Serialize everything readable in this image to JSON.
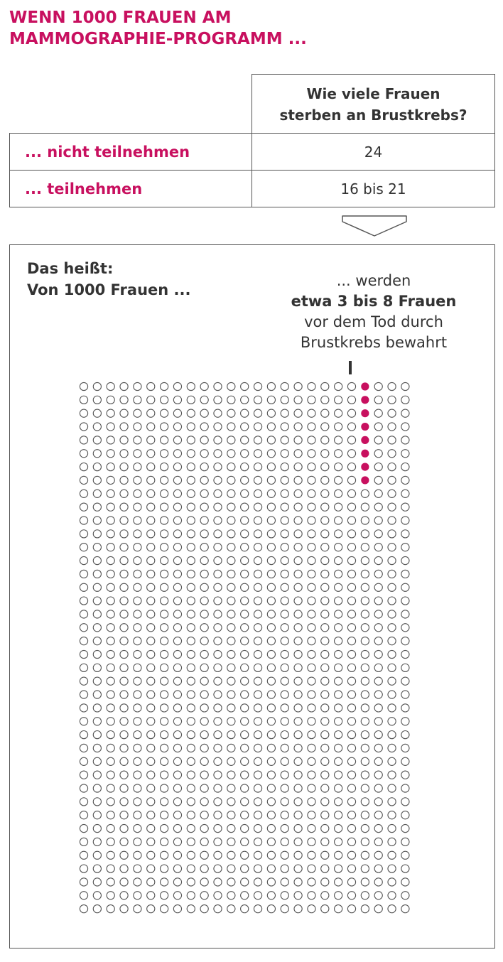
{
  "title": {
    "line1": "WENN 1000 FRAUEN AM",
    "line2": "MAMMOGRAPHIE-PROGRAMM ..."
  },
  "table": {
    "header": "Wie viele Frauen sterben an Brustkrebs?",
    "header_lines": [
      "Wie viele Frauen",
      "sterben an Brustkrebs?"
    ],
    "rows": [
      {
        "label": "... nicht teilnehmen",
        "value": "24"
      },
      {
        "label": "... teilnehmen",
        "value": "16 bis 21"
      }
    ]
  },
  "result": {
    "lead_lines": [
      "Das heißt:",
      "Von 1000 Frauen ..."
    ],
    "note_lines": [
      "... werden",
      "etwa 3 bis 8 Frauen",
      "vor dem Tod durch",
      "Brustkrebs bewahrt"
    ]
  },
  "icon_array": {
    "total": 1000,
    "columns": 25,
    "rows": 40,
    "highlighted_column": 21,
    "highlighted_count": 8,
    "highlight_color": "#c8105f",
    "outline_color": "#555555"
  },
  "colors": {
    "accent": "#c8105f",
    "text": "#333333",
    "border": "#555555"
  }
}
